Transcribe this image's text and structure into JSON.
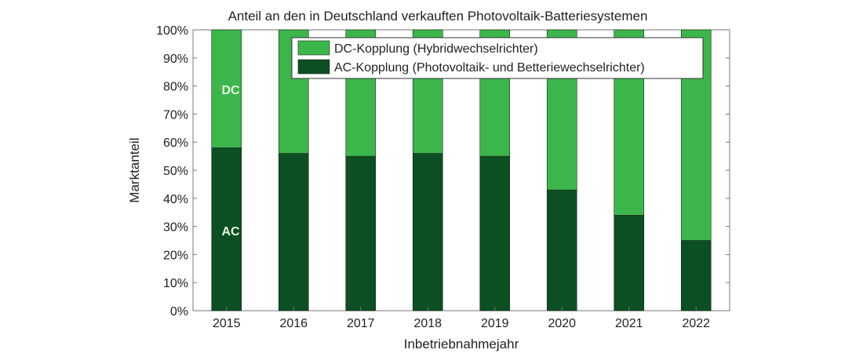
{
  "chart_data": {
    "type": "bar",
    "stacked": true,
    "title": "Anteil an den in Deutschland verkauften Photovoltaik-Batteriesystemen",
    "xlabel": "Inbetriebnahmejahr",
    "ylabel": "Marktanteil",
    "categories": [
      "2015",
      "2016",
      "2017",
      "2018",
      "2019",
      "2020",
      "2021",
      "2022"
    ],
    "series": [
      {
        "name": "AC-Kopplung (Photovoltaik- und Betteriewechselrichter)",
        "color": "#0b4f22",
        "values": [
          58,
          56,
          55,
          56,
          55,
          43,
          34,
          25
        ]
      },
      {
        "name": "DC-Kopplung (Hybridwechselrichter)",
        "color": "#3cb64b",
        "values": [
          42,
          44,
          45,
          44,
          45,
          57,
          66,
          75
        ]
      }
    ],
    "legend_order": [
      1,
      0
    ],
    "yticks": [
      "0%",
      "10%",
      "20%",
      "30%",
      "40%",
      "50%",
      "60%",
      "70%",
      "80%",
      "90%",
      "100%"
    ],
    "ylim": [
      0,
      100
    ],
    "legend_position": "top-right",
    "grid": false,
    "bar_labels": {
      "dc": "DC",
      "ac": "AC"
    }
  }
}
